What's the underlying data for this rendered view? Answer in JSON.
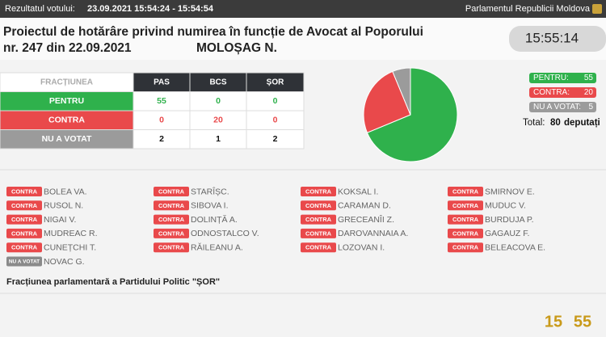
{
  "header": {
    "result_label": "Rezultatul votului:",
    "result_time": "23.09.2021 15:54:24 - 15:54:54",
    "parliament": "Parlamentul Republicii Moldova"
  },
  "title": {
    "line1": "Proiectul de hotărâre privind numirea în funcție de Avocat al Poporului",
    "line2": "nr. 247 din 22.09.2021",
    "name": "MOLOȘAG N.",
    "clock": "15:55:14"
  },
  "table": {
    "header": [
      "FRACȚIUNEA",
      "PAS",
      "BCS",
      "ȘOR"
    ],
    "rows": [
      [
        "PENTRU",
        55,
        0,
        0
      ],
      [
        "CONTRA",
        0,
        20,
        0
      ],
      [
        "NU A VOTAT",
        2,
        1,
        2
      ]
    ],
    "row_colors": [
      "#2fb14c",
      "#e9494b",
      "#9b9b9b"
    ],
    "text_colors": [
      "#2fb14c",
      "#e9494b",
      "#111111"
    ]
  },
  "summary": {
    "items": [
      {
        "label": "PENTRU:",
        "value": 55,
        "color": "#2fb14c"
      },
      {
        "label": "CONTRA:",
        "value": 20,
        "color": "#e9494b"
      },
      {
        "label": "NU A VOTAT:",
        "value": 5,
        "color": "#9b9b9b"
      }
    ],
    "total_label": "Total:",
    "total_value": 80,
    "total_unit": "deputați"
  },
  "deputies": [
    [
      {
        "vote": "CONTRA",
        "name": "BOLEA VA."
      },
      {
        "vote": "CONTRA",
        "name": "RUSOL N."
      },
      {
        "vote": "CONTRA",
        "name": "NIGAI V."
      },
      {
        "vote": "CONTRA",
        "name": "MUDREAC R."
      },
      {
        "vote": "CONTRA",
        "name": "CUNEȚCHI T."
      },
      {
        "vote": "NU A VOTAT",
        "name": "NOVAC G."
      }
    ],
    [
      {
        "vote": "CONTRA",
        "name": "STARÎȘC."
      },
      {
        "vote": "CONTRA",
        "name": "SIBOVA I."
      },
      {
        "vote": "CONTRA",
        "name": "DOLINȚĂ A."
      },
      {
        "vote": "CONTRA",
        "name": "ODNOSTALCO V."
      },
      {
        "vote": "CONTRA",
        "name": "RĂILEANU A."
      }
    ],
    [
      {
        "vote": "CONTRA",
        "name": "KOKSAL I."
      },
      {
        "vote": "CONTRA",
        "name": "CARAMAN D."
      },
      {
        "vote": "CONTRA",
        "name": "GRECEANÎI Z."
      },
      {
        "vote": "CONTRA",
        "name": "DAROVANNAIA A."
      },
      {
        "vote": "CONTRA",
        "name": "LOZOVAN I."
      }
    ],
    [
      {
        "vote": "CONTRA",
        "name": "SMIRNOV E."
      },
      {
        "vote": "CONTRA",
        "name": "MUDUC V."
      },
      {
        "vote": "CONTRA",
        "name": "BURDUJA P."
      },
      {
        "vote": "CONTRA",
        "name": "GAGAUZ F."
      },
      {
        "vote": "CONTRA",
        "name": "BELEACOVA E."
      }
    ]
  ],
  "footer": {
    "faction": "Fracțiunea parlamentară a Partidului Politic \"ȘOR\"",
    "hour": "15",
    "minute": "55"
  }
}
